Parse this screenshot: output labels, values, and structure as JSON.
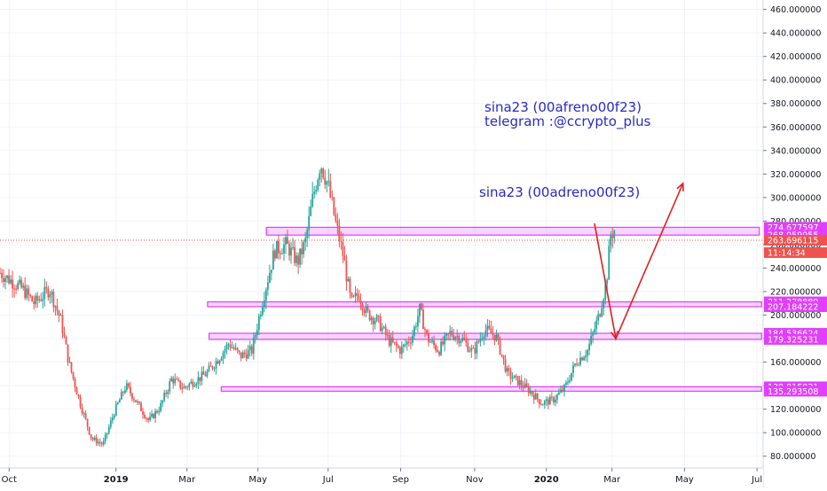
{
  "chart_data": {
    "type": "candlestick",
    "ylim": [
      70,
      468
    ],
    "grid": true,
    "x_ticks": [
      "Oct",
      "2019",
      "Mar",
      "May",
      "Jul",
      "Sep",
      "Nov",
      "2020",
      "Mar",
      "May",
      "Jul"
    ],
    "y_ticks": [
      "80.000000",
      "100.000000",
      "120.000000",
      "140.000000",
      "160.000000",
      "180.000000",
      "200.000000",
      "220.000000",
      "240.000000",
      "260.000000",
      "280.000000",
      "300.000000",
      "320.000000",
      "340.000000",
      "360.000000",
      "380.000000",
      "400.000000",
      "420.000000",
      "440.000000",
      "460.000000"
    ],
    "price_points": [
      [
        0,
        236
      ],
      [
        0.03,
        222
      ],
      [
        0.045,
        210
      ],
      [
        0.065,
        222
      ],
      [
        0.08,
        195
      ],
      [
        0.09,
        160
      ],
      [
        0.105,
        125
      ],
      [
        0.12,
        95
      ],
      [
        0.135,
        90
      ],
      [
        0.15,
        118
      ],
      [
        0.165,
        140
      ],
      [
        0.18,
        125
      ],
      [
        0.195,
        110
      ],
      [
        0.21,
        122
      ],
      [
        0.225,
        146
      ],
      [
        0.24,
        138
      ],
      [
        0.255,
        144
      ],
      [
        0.27,
        150
      ],
      [
        0.285,
        162
      ],
      [
        0.3,
        176
      ],
      [
        0.315,
        165
      ],
      [
        0.33,
        170
      ],
      [
        0.345,
        215
      ],
      [
        0.36,
        255
      ],
      [
        0.375,
        260
      ],
      [
        0.39,
        245
      ],
      [
        0.4,
        262
      ],
      [
        0.41,
        300
      ],
      [
        0.42,
        330
      ],
      [
        0.43,
        310
      ],
      [
        0.44,
        278
      ],
      [
        0.45,
        250
      ],
      [
        0.46,
        210
      ],
      [
        0.47,
        218
      ],
      [
        0.48,
        202
      ],
      [
        0.495,
        195
      ],
      [
        0.51,
        178
      ],
      [
        0.525,
        170
      ],
      [
        0.54,
        182
      ],
      [
        0.55,
        205
      ],
      [
        0.56,
        180
      ],
      [
        0.575,
        170
      ],
      [
        0.59,
        185
      ],
      [
        0.605,
        180
      ],
      [
        0.62,
        168
      ],
      [
        0.635,
        188
      ],
      [
        0.65,
        182
      ],
      [
        0.665,
        150
      ],
      [
        0.68,
        143
      ],
      [
        0.695,
        135
      ],
      [
        0.71,
        125
      ],
      [
        0.725,
        128
      ],
      [
        0.74,
        138
      ],
      [
        0.755,
        160
      ],
      [
        0.77,
        170
      ],
      [
        0.785,
        200
      ],
      [
        0.795,
        230
      ],
      [
        0.8,
        268
      ],
      [
        0.805,
        272
      ]
    ],
    "zones": [
      {
        "top": 274.677597,
        "bottom": 268.059955
      },
      {
        "top": 211.278889,
        "bottom": 207.184222
      },
      {
        "top": 184.536624,
        "bottom": 179.325231
      },
      {
        "top": 139.015931,
        "bottom": 135.293508
      }
    ],
    "price_tags": [
      {
        "value": 274.677597,
        "label": "274.677597",
        "color": "#e040fb"
      },
      {
        "value": 268.059955,
        "label": "268.059955",
        "color": "#e040fb"
      },
      {
        "value": 263.696115,
        "label": "263.696115",
        "color": "#ef5350"
      },
      {
        "value": 211.278889,
        "label": "211.278889",
        "color": "#e040fb"
      },
      {
        "value": 207.184222,
        "label": "207.184222",
        "color": "#e040fb"
      },
      {
        "value": 184.536624,
        "label": "184.536624",
        "color": "#e040fb"
      },
      {
        "value": 179.325231,
        "label": "179.325231",
        "color": "#e040fb"
      },
      {
        "value": 139.015931,
        "label": "139.015931",
        "color": "#e040fb"
      },
      {
        "value": 135.293508,
        "label": "135.293508",
        "color": "#e040fb"
      }
    ],
    "countdown": "11:14:34",
    "current_price": 263.696115,
    "annotations": [
      "sina23 (00afreno00f23)",
      "telegram :@ccrypto_plus",
      "sina23 (00adreno00f23)"
    ],
    "colors": {
      "up": "#26a69a",
      "down": "#ef5350",
      "zone": "#e040fb",
      "arrow": "#e02020",
      "text": "#2929c8"
    }
  }
}
